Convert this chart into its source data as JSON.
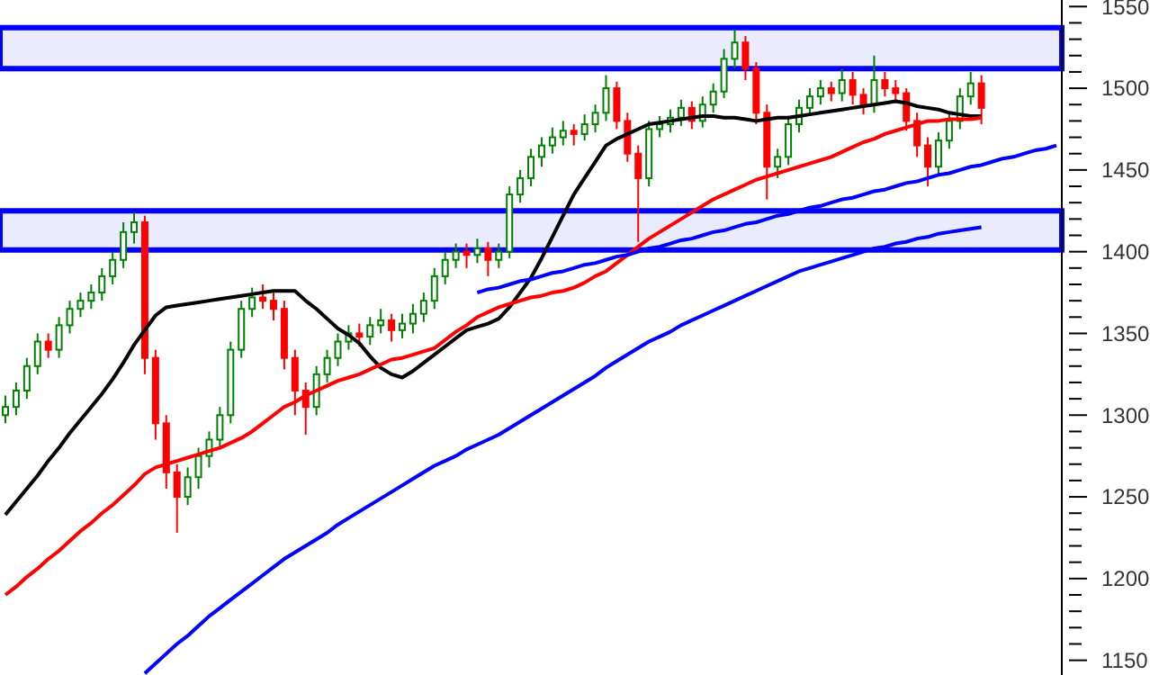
{
  "chart_data": {
    "type": "candlestick",
    "tick_labels": "y",
    "legend": false,
    "marker": "none",
    "categories": [
      null,
      null,
      null,
      null,
      null,
      null,
      null,
      null,
      null,
      null,
      null,
      null,
      null,
      null,
      null,
      null,
      null,
      null,
      null,
      null,
      null,
      null,
      null,
      null,
      null,
      null,
      null,
      null,
      null,
      null,
      null,
      null,
      null,
      null,
      null,
      null,
      null,
      null,
      null,
      null,
      null,
      null,
      null,
      null,
      null,
      null,
      null,
      null,
      null,
      null,
      null,
      null,
      null,
      null,
      null,
      null,
      null,
      null,
      null,
      null,
      null,
      null,
      null,
      null,
      null,
      null,
      null,
      null,
      null,
      null,
      null,
      null,
      null,
      null,
      null,
      null,
      null,
      null,
      null,
      null,
      null,
      null,
      null,
      null,
      null,
      null,
      null,
      null,
      null,
      null,
      null,
      null,
      null,
      null,
      null,
      null,
      null,
      null,
      null
    ],
    "ohlc": [
      [
        1300,
        1312,
        1295,
        1305
      ],
      [
        1305,
        1320,
        1300,
        1315
      ],
      [
        1315,
        1335,
        1310,
        1330
      ],
      [
        1330,
        1350,
        1325,
        1345
      ],
      [
        1345,
        1350,
        1335,
        1340
      ],
      [
        1340,
        1360,
        1335,
        1355
      ],
      [
        1355,
        1370,
        1350,
        1365
      ],
      [
        1365,
        1375,
        1360,
        1370
      ],
      [
        1370,
        1380,
        1365,
        1375
      ],
      [
        1375,
        1390,
        1370,
        1385
      ],
      [
        1385,
        1400,
        1380,
        1395
      ],
      [
        1395,
        1418,
        1390,
        1412
      ],
      [
        1412,
        1424,
        1405,
        1418
      ],
      [
        1418,
        1422,
        1325,
        1335
      ],
      [
        1335,
        1340,
        1285,
        1295
      ],
      [
        1295,
        1300,
        1255,
        1265
      ],
      [
        1265,
        1270,
        1228,
        1250
      ],
      [
        1250,
        1268,
        1245,
        1262
      ],
      [
        1262,
        1280,
        1255,
        1275
      ],
      [
        1275,
        1290,
        1268,
        1285
      ],
      [
        1285,
        1305,
        1280,
        1300
      ],
      [
        1300,
        1345,
        1295,
        1340
      ],
      [
        1340,
        1370,
        1335,
        1365
      ],
      [
        1365,
        1378,
        1360,
        1372
      ],
      [
        1372,
        1380,
        1365,
        1370
      ],
      [
        1370,
        1375,
        1358,
        1365
      ],
      [
        1365,
        1370,
        1328,
        1335
      ],
      [
        1335,
        1340,
        1300,
        1315
      ],
      [
        1315,
        1320,
        1288,
        1305
      ],
      [
        1305,
        1330,
        1300,
        1325
      ],
      [
        1325,
        1340,
        1320,
        1335
      ],
      [
        1335,
        1350,
        1330,
        1345
      ],
      [
        1345,
        1355,
        1340,
        1350
      ],
      [
        1350,
        1356,
        1342,
        1348
      ],
      [
        1348,
        1360,
        1343,
        1355
      ],
      [
        1355,
        1365,
        1350,
        1358
      ],
      [
        1358,
        1362,
        1345,
        1352
      ],
      [
        1352,
        1362,
        1347,
        1356
      ],
      [
        1356,
        1368,
        1350,
        1362
      ],
      [
        1362,
        1375,
        1357,
        1370
      ],
      [
        1370,
        1390,
        1365,
        1385
      ],
      [
        1385,
        1400,
        1380,
        1395
      ],
      [
        1395,
        1405,
        1390,
        1400
      ],
      [
        1400,
        1405,
        1390,
        1398
      ],
      [
        1398,
        1408,
        1393,
        1402
      ],
      [
        1402,
        1406,
        1385,
        1395
      ],
      [
        1395,
        1405,
        1390,
        1400
      ],
      [
        1400,
        1440,
        1396,
        1435
      ],
      [
        1435,
        1450,
        1430,
        1445
      ],
      [
        1445,
        1463,
        1440,
        1458
      ],
      [
        1458,
        1470,
        1452,
        1465
      ],
      [
        1465,
        1476,
        1460,
        1470
      ],
      [
        1470,
        1480,
        1465,
        1474
      ],
      [
        1474,
        1478,
        1465,
        1472
      ],
      [
        1472,
        1484,
        1468,
        1478
      ],
      [
        1478,
        1490,
        1473,
        1485
      ],
      [
        1485,
        1508,
        1480,
        1500
      ],
      [
        1500,
        1504,
        1475,
        1480
      ],
      [
        1480,
        1485,
        1455,
        1460
      ],
      [
        1460,
        1465,
        1406,
        1445
      ],
      [
        1445,
        1480,
        1440,
        1475
      ],
      [
        1475,
        1483,
        1470,
        1478
      ],
      [
        1478,
        1487,
        1473,
        1482
      ],
      [
        1482,
        1493,
        1477,
        1488
      ],
      [
        1488,
        1492,
        1475,
        1480
      ],
      [
        1480,
        1495,
        1476,
        1490
      ],
      [
        1490,
        1503,
        1485,
        1498
      ],
      [
        1498,
        1524,
        1494,
        1518
      ],
      [
        1518,
        1536,
        1512,
        1528
      ],
      [
        1528,
        1532,
        1505,
        1512
      ],
      [
        1512,
        1516,
        1478,
        1485
      ],
      [
        1485,
        1490,
        1432,
        1452
      ],
      [
        1452,
        1463,
        1445,
        1458
      ],
      [
        1458,
        1483,
        1453,
        1478
      ],
      [
        1478,
        1493,
        1473,
        1488
      ],
      [
        1488,
        1500,
        1483,
        1495
      ],
      [
        1495,
        1505,
        1490,
        1500
      ],
      [
        1500,
        1504,
        1492,
        1497
      ],
      [
        1497,
        1512,
        1492,
        1505
      ],
      [
        1505,
        1510,
        1490,
        1496
      ],
      [
        1496,
        1500,
        1484,
        1490
      ],
      [
        1490,
        1520,
        1485,
        1505
      ],
      [
        1505,
        1510,
        1495,
        1500
      ],
      [
        1500,
        1505,
        1492,
        1497
      ],
      [
        1497,
        1500,
        1474,
        1480
      ],
      [
        1480,
        1485,
        1458,
        1465
      ],
      [
        1465,
        1470,
        1440,
        1452
      ],
      [
        1452,
        1473,
        1447,
        1468
      ],
      [
        1468,
        1485,
        1463,
        1480
      ],
      [
        1480,
        1500,
        1475,
        1495
      ],
      [
        1495,
        1510,
        1490,
        1503
      ],
      [
        1503,
        1508,
        1478,
        1488
      ],
      null,
      null,
      null,
      null,
      null,
      null,
      null
    ],
    "series": [
      {
        "type": "line",
        "color": "#000000",
        "values": [
          1239,
          1247,
          1255,
          1263,
          1272,
          1280,
          1289,
          1297,
          1305,
          1313,
          1322,
          1332,
          1343,
          1352,
          1361,
          1366,
          1367,
          1368,
          1369,
          1370,
          1371,
          1372,
          1373,
          1374,
          1375,
          1376,
          1376,
          1376,
          1370,
          1365,
          1359,
          1353,
          1349,
          1344,
          1336,
          1329,
          1325,
          1323,
          1327,
          1332,
          1337,
          1342,
          1347,
          1352,
          1354,
          1356,
          1359,
          1366,
          1375,
          1384,
          1396,
          1409,
          1422,
          1435,
          1445,
          1455,
          1465,
          1469,
          1472,
          1475,
          1478,
          1479,
          1480,
          1481,
          1482,
          1483,
          1483,
          1482,
          1482,
          1481,
          1480,
          1481,
          1482,
          1482,
          1483,
          1484,
          1485,
          1486,
          1487,
          1488,
          1489,
          1490,
          1491,
          1492,
          1491,
          1489,
          1488,
          1487,
          1485,
          1484,
          1483,
          1483,
          null,
          null,
          null,
          null,
          null,
          null,
          null
        ]
      },
      {
        "type": "line",
        "color": "#ff0000",
        "values": [
          1190,
          1195,
          1201,
          1206,
          1212,
          1217,
          1223,
          1229,
          1234,
          1240,
          1245,
          1251,
          1257,
          1264,
          1268,
          1270,
          1272,
          1274,
          1276,
          1278,
          1280,
          1283,
          1286,
          1290,
          1295,
          1300,
          1305,
          1308,
          1312,
          1315,
          1318,
          1321,
          1323,
          1325,
          1328,
          1331,
          1334,
          1335,
          1337,
          1339,
          1341,
          1346,
          1351,
          1355,
          1360,
          1363,
          1366,
          1368,
          1370,
          1372,
          1373,
          1375,
          1376,
          1378,
          1381,
          1385,
          1388,
          1393,
          1398,
          1403,
          1408,
          1412,
          1416,
          1420,
          1424,
          1428,
          1432,
          1435,
          1438,
          1441,
          1444,
          1446,
          1448,
          1450,
          1452,
          1454,
          1456,
          1458,
          1461,
          1464,
          1467,
          1469,
          1472,
          1474,
          1476,
          1478,
          1480,
          1480,
          1481,
          1481,
          1481,
          1482,
          null,
          null,
          null,
          null,
          null,
          null,
          null
        ]
      },
      {
        "type": "line",
        "color": "#0000ff",
        "values": [
          null,
          null,
          null,
          null,
          null,
          null,
          null,
          null,
          null,
          null,
          null,
          null,
          null,
          1142,
          1148,
          1154,
          1160,
          1165,
          1171,
          1177,
          1182,
          1187,
          1192,
          1197,
          1202,
          1207,
          1212,
          1216,
          1220,
          1224,
          1228,
          1233,
          1237,
          1241,
          1245,
          1249,
          1253,
          1257,
          1261,
          1265,
          1269,
          1272,
          1275,
          1279,
          1282,
          1285,
          1288,
          1292,
          1296,
          1300,
          1304,
          1308,
          1312,
          1316,
          1320,
          1324,
          1329,
          1333,
          1337,
          1341,
          1345,
          1348,
          1351,
          1355,
          1358,
          1361,
          1364,
          1367,
          1370,
          1373,
          1376,
          1379,
          1382,
          1385,
          1388,
          1390,
          1392,
          1394,
          1396,
          1398,
          1400,
          1402,
          1403,
          1405,
          1406,
          1408,
          1409,
          1411,
          1412,
          1413,
          1414,
          1415,
          null,
          null,
          null,
          null,
          null,
          null,
          null
        ]
      },
      {
        "type": "line",
        "color": "#0000ff",
        "values": [
          null,
          null,
          null,
          null,
          null,
          null,
          null,
          null,
          null,
          null,
          null,
          null,
          null,
          null,
          null,
          null,
          null,
          null,
          null,
          null,
          null,
          null,
          null,
          null,
          null,
          null,
          null,
          null,
          null,
          null,
          null,
          null,
          null,
          null,
          null,
          null,
          null,
          null,
          null,
          null,
          null,
          null,
          null,
          null,
          1375,
          1377,
          1378,
          1380,
          1382,
          1383,
          1385,
          1387,
          1388,
          1390,
          1392,
          1393,
          1395,
          1397,
          1398,
          1400,
          1402,
          1403,
          1405,
          1407,
          1408,
          1410,
          1412,
          1413,
          1415,
          1417,
          1418,
          1420,
          1422,
          1423,
          1425,
          1427,
          1428,
          1430,
          1432,
          1433,
          1435,
          1437,
          1438,
          1440,
          1442,
          1443,
          1445,
          1447,
          1448,
          1450,
          1452,
          1453,
          1455,
          1457,
          1458,
          1460,
          1462,
          1463,
          1465
        ]
      }
    ],
    "bands": [
      {
        "axis": "y",
        "from": 1512,
        "to": 1537,
        "color": "#0000ff"
      },
      {
        "axis": "y",
        "from": 1401,
        "to": 1425,
        "color": "#0000ff"
      }
    ],
    "ylim": [
      1141,
      1554
    ],
    "yticks": [
      1150,
      {
        "value": 1160,
        "label": null
      },
      {
        "value": 1170,
        "label": null
      },
      {
        "value": 1180,
        "label": null
      },
      {
        "value": 1190,
        "label": null
      },
      1200,
      {
        "value": 1210,
        "label": null
      },
      {
        "value": 1220,
        "label": null
      },
      {
        "value": 1230,
        "label": null
      },
      {
        "value": 1240,
        "label": null
      },
      1250,
      {
        "value": 1260,
        "label": null
      },
      {
        "value": 1270,
        "label": null
      },
      {
        "value": 1280,
        "label": null
      },
      {
        "value": 1290,
        "label": null
      },
      1300,
      {
        "value": 1310,
        "label": null
      },
      {
        "value": 1320,
        "label": null
      },
      {
        "value": 1330,
        "label": null
      },
      {
        "value": 1340,
        "label": null
      },
      1350,
      {
        "value": 1360,
        "label": null
      },
      {
        "value": 1370,
        "label": null
      },
      {
        "value": 1380,
        "label": null
      },
      {
        "value": 1390,
        "label": null
      },
      1400,
      {
        "value": 1410,
        "label": null
      },
      {
        "value": 1420,
        "label": null
      },
      {
        "value": 1430,
        "label": null
      },
      {
        "value": 1440,
        "label": null
      },
      1450,
      {
        "value": 1460,
        "label": null
      },
      {
        "value": 1470,
        "label": null
      },
      {
        "value": 1480,
        "label": null
      },
      {
        "value": 1490,
        "label": null
      },
      1500,
      {
        "value": 1510,
        "label": null
      },
      {
        "value": 1520,
        "label": null
      },
      {
        "value": 1530,
        "label": null
      },
      {
        "value": 1540,
        "label": null
      },
      1550
    ]
  }
}
